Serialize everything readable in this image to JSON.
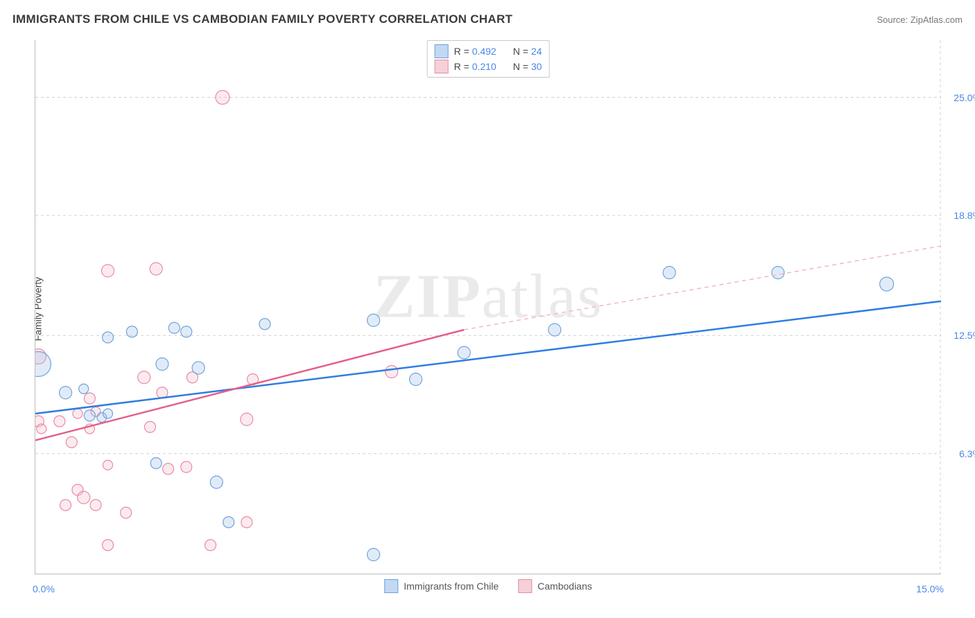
{
  "title": "IMMIGRANTS FROM CHILE VS CAMBODIAN FAMILY POVERTY CORRELATION CHART",
  "source_prefix": "Source: ",
  "source_name": "ZipAtlas.com",
  "y_axis_label": "Family Poverty",
  "watermark": {
    "bold": "ZIP",
    "rest": "atlas"
  },
  "chart": {
    "type": "scatter",
    "xlim": [
      0,
      15
    ],
    "ylim": [
      0,
      28
    ],
    "x_ticks_minor": [
      0,
      1,
      2,
      3,
      4,
      5,
      6,
      7,
      8,
      9,
      10,
      11,
      12,
      13,
      14,
      15
    ],
    "x_tick_labels": {
      "0": "0.0%",
      "15": "15.0%"
    },
    "y_gridlines": [
      6.3,
      12.5,
      18.8,
      25.0
    ],
    "y_tick_labels": [
      "6.3%",
      "12.5%",
      "18.8%",
      "25.0%"
    ],
    "background_color": "#ffffff",
    "grid_color": "#d0d0d0",
    "axis_color": "#bbbbbb",
    "tick_label_color": "#4a86e8",
    "tick_fontsize": 14,
    "title_fontsize": 17,
    "title_color": "#3a3a3a",
    "marker_stroke_width": 1.2,
    "marker_fill_opacity": 0.35,
    "default_radius": 9,
    "series": [
      {
        "id": "chile",
        "label": "Immigrants from Chile",
        "color_fill": "#a9c7ec",
        "color_stroke": "#6fa3dd",
        "R": "0.492",
        "N": "24",
        "trend": {
          "type": "solid",
          "color": "#2f7de0",
          "width": 2.5,
          "x1": 0,
          "y1": 8.4,
          "x2": 15,
          "y2": 14.3
        },
        "points": [
          {
            "x": 0.05,
            "y": 11.0,
            "r": 18
          },
          {
            "x": 0.5,
            "y": 9.5,
            "r": 9
          },
          {
            "x": 0.8,
            "y": 9.7,
            "r": 7
          },
          {
            "x": 0.9,
            "y": 8.3,
            "r": 8
          },
          {
            "x": 1.1,
            "y": 8.2,
            "r": 7
          },
          {
            "x": 1.2,
            "y": 8.4,
            "r": 7
          },
          {
            "x": 1.2,
            "y": 12.4,
            "r": 8
          },
          {
            "x": 1.6,
            "y": 12.7,
            "r": 8
          },
          {
            "x": 2.0,
            "y": 5.8,
            "r": 8
          },
          {
            "x": 2.1,
            "y": 11.0,
            "r": 9
          },
          {
            "x": 2.3,
            "y": 12.9,
            "r": 8
          },
          {
            "x": 2.5,
            "y": 12.7,
            "r": 8
          },
          {
            "x": 2.7,
            "y": 10.8,
            "r": 9
          },
          {
            "x": 3.0,
            "y": 4.8,
            "r": 9
          },
          {
            "x": 3.2,
            "y": 2.7,
            "r": 8
          },
          {
            "x": 3.8,
            "y": 13.1,
            "r": 8
          },
          {
            "x": 5.6,
            "y": 13.3,
            "r": 9
          },
          {
            "x": 5.6,
            "y": 1.0,
            "r": 9
          },
          {
            "x": 6.3,
            "y": 10.2,
            "r": 9
          },
          {
            "x": 7.1,
            "y": 11.6,
            "r": 9
          },
          {
            "x": 8.6,
            "y": 12.8,
            "r": 9
          },
          {
            "x": 10.5,
            "y": 15.8,
            "r": 9
          },
          {
            "x": 12.3,
            "y": 15.8,
            "r": 9
          },
          {
            "x": 14.1,
            "y": 15.2,
            "r": 10
          }
        ]
      },
      {
        "id": "cambodians",
        "label": "Cambodians",
        "color_fill": "#f4c2cf",
        "color_stroke": "#e88ba6",
        "R": "0.210",
        "N": "30",
        "trend": {
          "type": "solid",
          "color": "#e55f88",
          "width": 2.5,
          "x1": 0,
          "y1": 7.0,
          "x2": 7.1,
          "y2": 12.8
        },
        "trend_extrapolate": {
          "type": "dashed",
          "color": "#f4b6c5",
          "width": 1.5,
          "x1": 7.1,
          "y1": 12.8,
          "x2": 15,
          "y2": 17.2
        },
        "points": [
          {
            "x": 0.05,
            "y": 11.4,
            "r": 11
          },
          {
            "x": 0.05,
            "y": 8.0,
            "r": 8
          },
          {
            "x": 0.1,
            "y": 7.6,
            "r": 7
          },
          {
            "x": 0.4,
            "y": 8.0,
            "r": 8
          },
          {
            "x": 0.5,
            "y": 3.6,
            "r": 8
          },
          {
            "x": 0.6,
            "y": 6.9,
            "r": 8
          },
          {
            "x": 0.7,
            "y": 8.4,
            "r": 7
          },
          {
            "x": 0.7,
            "y": 4.4,
            "r": 8
          },
          {
            "x": 0.8,
            "y": 4.0,
            "r": 9
          },
          {
            "x": 0.9,
            "y": 9.2,
            "r": 8
          },
          {
            "x": 0.9,
            "y": 7.6,
            "r": 7
          },
          {
            "x": 1.0,
            "y": 3.6,
            "r": 8
          },
          {
            "x": 1.0,
            "y": 8.5,
            "r": 7
          },
          {
            "x": 1.2,
            "y": 15.9,
            "r": 9
          },
          {
            "x": 1.2,
            "y": 5.7,
            "r": 7
          },
          {
            "x": 1.2,
            "y": 1.5,
            "r": 8
          },
          {
            "x": 1.5,
            "y": 3.2,
            "r": 8
          },
          {
            "x": 1.8,
            "y": 10.3,
            "r": 9
          },
          {
            "x": 1.9,
            "y": 7.7,
            "r": 8
          },
          {
            "x": 2.0,
            "y": 16.0,
            "r": 9
          },
          {
            "x": 2.1,
            "y": 9.5,
            "r": 8
          },
          {
            "x": 2.2,
            "y": 5.5,
            "r": 8
          },
          {
            "x": 2.5,
            "y": 5.6,
            "r": 8
          },
          {
            "x": 2.6,
            "y": 10.3,
            "r": 8
          },
          {
            "x": 2.9,
            "y": 1.5,
            "r": 8
          },
          {
            "x": 3.1,
            "y": 25.0,
            "r": 10
          },
          {
            "x": 3.5,
            "y": 8.1,
            "r": 9
          },
          {
            "x": 3.5,
            "y": 2.7,
            "r": 8
          },
          {
            "x": 3.6,
            "y": 10.2,
            "r": 8
          },
          {
            "x": 5.9,
            "y": 10.6,
            "r": 9
          }
        ]
      }
    ]
  },
  "legend_top": {
    "rows": [
      {
        "series": 0,
        "r_label": "R =",
        "n_label": "N ="
      },
      {
        "series": 1,
        "r_label": "R =",
        "n_label": "N ="
      }
    ]
  }
}
